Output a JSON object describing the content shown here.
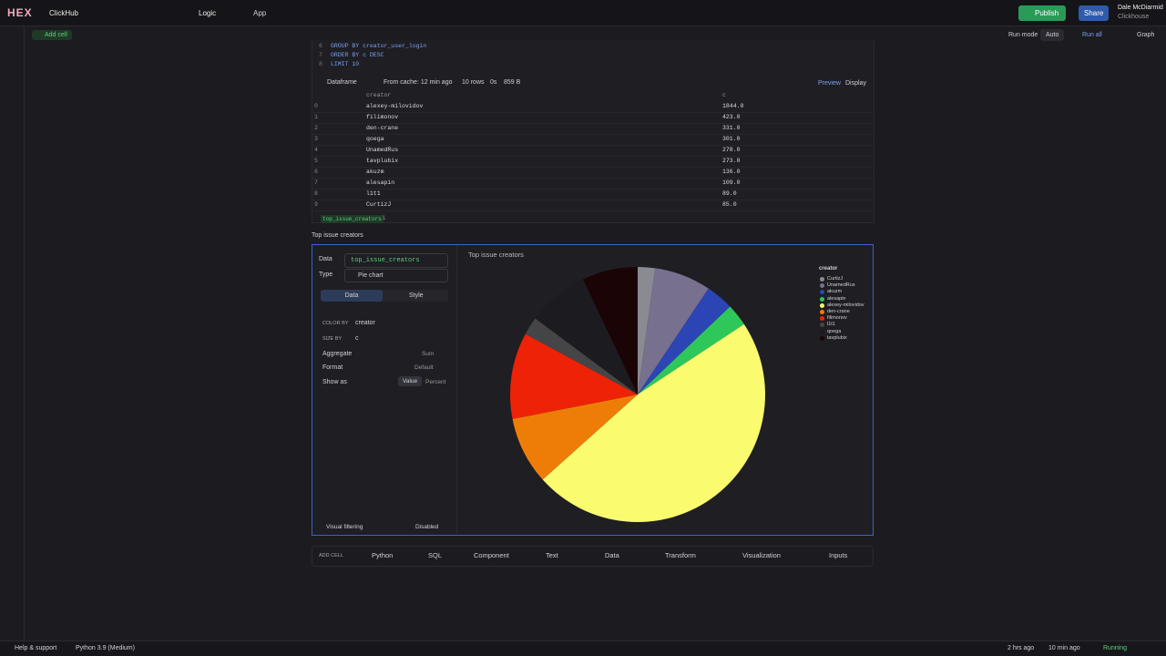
{
  "topbar": {
    "logo": "HEX",
    "project": "ClickHub",
    "tabs": [
      "Logic",
      "App"
    ],
    "publish": "Publish",
    "share": "Share",
    "user": "Dale McDiarmid",
    "org": "Clickhouse"
  },
  "toolbar": {
    "add_cell": "Add cell",
    "run_mode": "Run mode",
    "run_mode_value": "Auto",
    "run_all": "Run all",
    "graph": "Graph"
  },
  "code": [
    {
      "line": "6",
      "text": "GROUP BY creator_user_login"
    },
    {
      "line": "7",
      "text": "ORDER BY c DESC"
    },
    {
      "line": "8",
      "text": "LIMIT 10"
    }
  ],
  "dataframe_bar": {
    "label": "Dataframe",
    "cache": "From cache: 12 min ago",
    "rows": "10 rows",
    "time": "0s",
    "size": "859 B",
    "preview": "Preview",
    "display": "Display"
  },
  "table": {
    "columns": [
      "creator",
      "c"
    ],
    "rows": [
      [
        "0",
        "alexey-milovidov",
        "1844.0"
      ],
      [
        "1",
        "filimonov",
        "423.0"
      ],
      [
        "2",
        "den-crane",
        "331.0"
      ],
      [
        "3",
        "qoega",
        "301.0"
      ],
      [
        "4",
        "UnamedRus",
        "278.0"
      ],
      [
        "5",
        "tavplubix",
        "273.0"
      ],
      [
        "6",
        "akuzm",
        "136.0"
      ],
      [
        "7",
        "alesapin",
        "109.0"
      ],
      [
        "8",
        "l1t1",
        "89.0"
      ],
      [
        "9",
        "CurtizJ",
        "85.0"
      ]
    ]
  },
  "output": {
    "name": "top_issue_creators",
    "count": "1"
  },
  "cell_title": "Top issue creators",
  "config": {
    "data_label": "Data",
    "data_value": "top_issue_creators",
    "type_label": "Type",
    "type_value": "Pie chart",
    "tabs": [
      "Data",
      "Style"
    ],
    "color_by_label": "COLOR BY",
    "color_by": "creator",
    "size_by_label": "SIZE BY",
    "size_by": "c",
    "aggregate_label": "Aggregate",
    "aggregate": "Sum",
    "format_label": "Format",
    "format": "Default",
    "show_as_label": "Show as",
    "show_as": [
      "Value",
      "Percent"
    ],
    "visual_filtering": "Visual filtering",
    "visual_filtering_value": "Disabled"
  },
  "chart": {
    "title": "Top issue creators",
    "legend_title": "creator",
    "legend": [
      {
        "name": "CurtizJ",
        "color": "#8a8a92"
      },
      {
        "name": "UnamedRus",
        "color": "#77708f"
      },
      {
        "name": "akuzm",
        "color": "#2c45b4"
      },
      {
        "name": "alesapin",
        "color": "#2ec85a"
      },
      {
        "name": "alexey-milovidov",
        "color": "#fbfb70"
      },
      {
        "name": "den-crane",
        "color": "#ee7d08"
      },
      {
        "name": "filimonov",
        "color": "#ee2206"
      },
      {
        "name": "l1t1",
        "color": "#454548"
      },
      {
        "name": "qoega",
        "color": "#1c1c20"
      },
      {
        "name": "tavplubix",
        "color": "#1a0406"
      }
    ]
  },
  "add_bar": {
    "label": "ADD CELL",
    "items": [
      "Python",
      "SQL",
      "Component",
      "Text",
      "Data",
      "Transform",
      "Visualization",
      "Inputs"
    ]
  },
  "footer": {
    "help": "Help & support",
    "kernel": "Python 3.9 (Medium)",
    "saved": "2 hrs ago",
    "run": "10 min ago",
    "status": "Running"
  }
}
